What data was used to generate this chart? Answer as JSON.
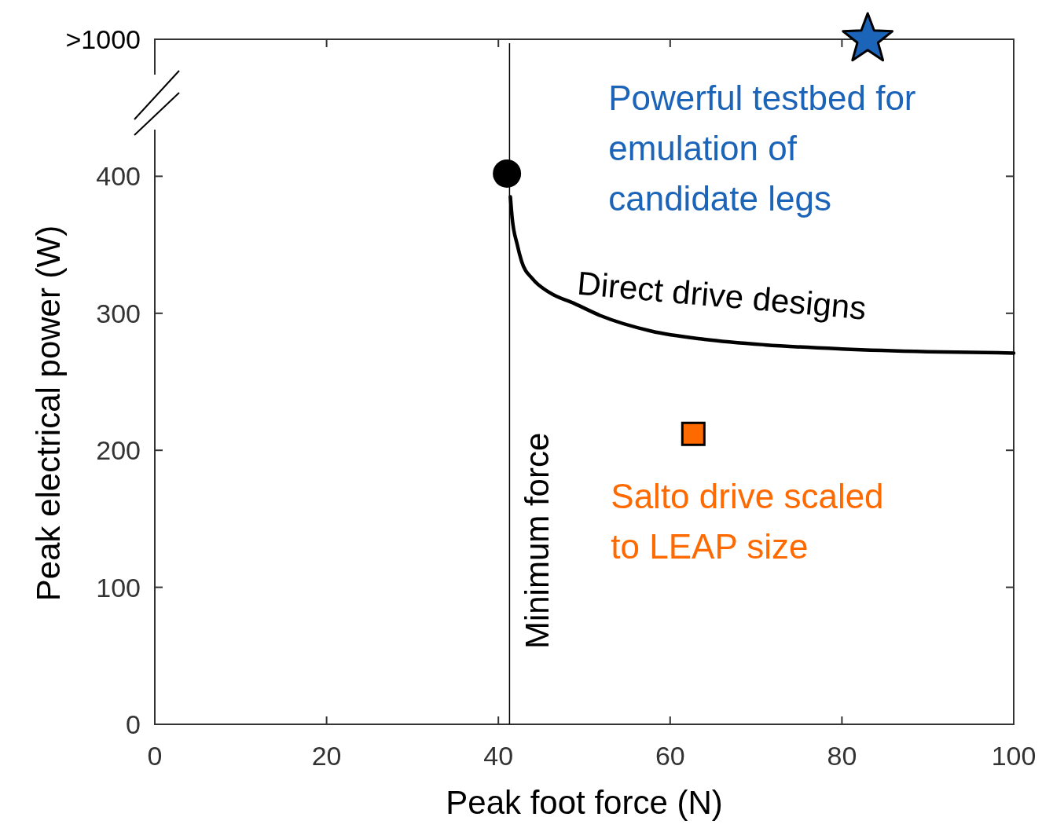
{
  "chart_data": {
    "type": "line",
    "xlabel": "Peak foot force (N)",
    "ylabel": "Peak electrical power (W)",
    "xlim": [
      0,
      100
    ],
    "xticks": [
      0,
      20,
      40,
      60,
      80,
      100
    ],
    "ylim": [
      0,
      500
    ],
    "yticks": [
      0,
      100,
      200,
      300,
      400,
      {
        "value": 500,
        "label": ">1000"
      }
    ],
    "grid": false,
    "legend": false,
    "series": [
      {
        "name": "Direct drive designs",
        "color": "#000000",
        "marker": "none",
        "x": [
          41.4,
          41.6,
          42.2,
          42.7,
          44,
          46,
          48.9,
          52,
          57.8,
          64,
          71,
          80,
          90,
          100
        ],
        "values": [
          385,
          370,
          350,
          338,
          325,
          315,
          307,
          298,
          287,
          281,
          277,
          274,
          272,
          271
        ]
      },
      {
        "type": "scatter",
        "color": "#000000",
        "marker": "circle",
        "x": [
          41
        ],
        "values": [
          402
        ]
      },
      {
        "name": "Salto drive scaled\nto LEAP size",
        "type": "scatter",
        "color": "#ff6a00",
        "marker": "square",
        "x": [
          62.7
        ],
        "values": [
          212
        ]
      },
      {
        "name": "Powerful testbed for\nemulation of\ncandidate legs",
        "type": "scatter",
        "color": "#1c64b8",
        "marker": "star",
        "x": [
          83
        ],
        "values": [
          500
        ]
      }
    ],
    "ref_lines": [
      {
        "axis": "x",
        "value": 41.3,
        "label": "Minimum force",
        "color": "#000000"
      }
    ]
  }
}
